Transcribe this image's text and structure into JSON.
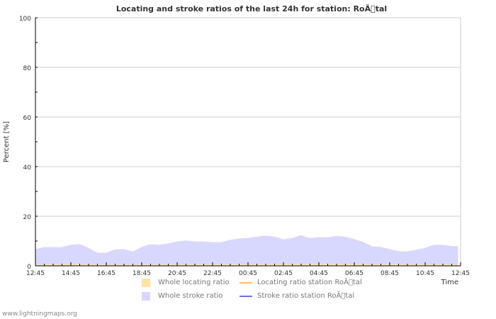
{
  "chart_data": {
    "type": "area",
    "title": "Locating and stroke ratios of the last 24h for station: RoÃ\u0000tal",
    "xlabel": "Time",
    "ylabel": "Percent   [%]",
    "ylim": [
      0,
      100
    ],
    "yticks": [
      0,
      20,
      40,
      60,
      80,
      100
    ],
    "xtick_labels": [
      "12:45",
      "14:45",
      "16:45",
      "18:45",
      "20:45",
      "22:45",
      "00:45",
      "02:45",
      "04:45",
      "06:45",
      "08:45",
      "10:45",
      "12:45"
    ],
    "x_unit": "hours since 12:45",
    "xlim": [
      0,
      24
    ],
    "grid": true,
    "series": [
      {
        "name": "Whole locating ratio",
        "kind": "area",
        "color": "#ffe4a8",
        "x": [
          0,
          2,
          4,
          6,
          8,
          10,
          12,
          14,
          16,
          18,
          20,
          22,
          23.84
        ],
        "values": [
          0.3,
          0.5,
          0.3,
          0.3,
          0.4,
          0.4,
          0.4,
          0.5,
          0.5,
          0.5,
          0.4,
          0.4,
          0.4
        ]
      },
      {
        "name": "Whole stroke ratio",
        "kind": "area",
        "color": "#d8d8ff",
        "x": [
          0,
          0.5,
          1,
          1.5,
          2,
          2.5,
          3,
          3.5,
          4,
          4.5,
          5,
          5.5,
          6,
          6.5,
          7,
          7.5,
          8,
          8.5,
          9,
          9.5,
          10,
          10.5,
          11,
          11.5,
          12,
          12.5,
          13,
          13.5,
          14,
          14.5,
          15,
          15.5,
          16,
          16.5,
          17,
          17.5,
          18,
          18.5,
          19,
          19.5,
          20,
          20.5,
          21,
          21.5,
          22,
          22.5,
          23,
          23.5,
          23.84
        ],
        "values": [
          6.6,
          7.4,
          7.4,
          7.4,
          8.3,
          8.6,
          7.1,
          5.1,
          5.1,
          6.5,
          6.6,
          5.6,
          7.5,
          8.6,
          8.3,
          8.9,
          9.7,
          10.1,
          9.7,
          9.7,
          9.4,
          9.4,
          10.3,
          10.9,
          11.1,
          11.6,
          12.0,
          11.7,
          10.5,
          11.1,
          12.2,
          11.0,
          11.4,
          11.4,
          11.9,
          11.6,
          10.6,
          9.5,
          7.7,
          7.5,
          6.6,
          5.8,
          5.7,
          6.3,
          7.1,
          8.3,
          8.3,
          7.8,
          7.8
        ]
      },
      {
        "name": "Locating ratio station RoÃ\u0000tal",
        "kind": "line",
        "color": "#f8c060",
        "x": [],
        "values": []
      },
      {
        "name": "Stroke ratio station RoÃ\u0000tal",
        "kind": "line",
        "color": "#7070e0",
        "x": [],
        "values": []
      }
    ],
    "legend_position": "bottom"
  },
  "credit": "www.lightningmaps.org"
}
